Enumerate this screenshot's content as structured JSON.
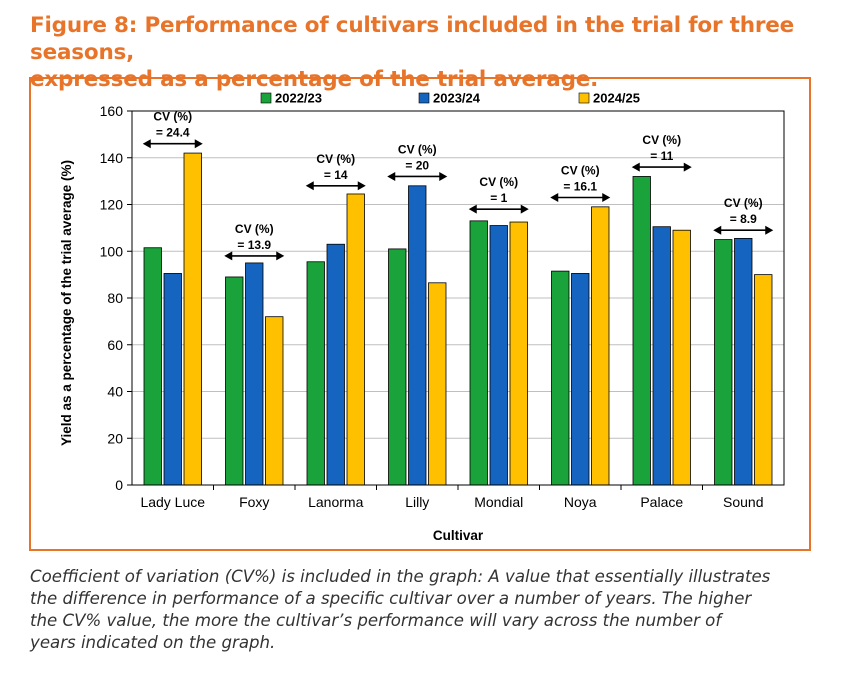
{
  "figure": {
    "title_line1": "Figure 8: Performance of cultivars included in the trial for three seasons,",
    "title_line2": "expressed as a percentage of the trial average.",
    "caption_lines": [
      "Coefficient of variation (CV%) is included in the graph: A value that essentially illustrates",
      "the difference in performance of a specific cultivar over a number of years. The higher",
      "the CV% value, the more the cultivar’s performance will vary across the number of",
      "years indicated on the graph."
    ]
  },
  "colors": {
    "title": "#e8742a",
    "series": [
      "#1aa33a",
      "#1565c0",
      "#ffc000"
    ]
  },
  "chart_data": {
    "type": "bar",
    "xlabel": "Cultivar",
    "ylabel": "Yield as a percentage of the trial average (%)",
    "ylim": [
      0,
      160
    ],
    "yticks": [
      0,
      20,
      40,
      60,
      80,
      100,
      120,
      140,
      160
    ],
    "grid": true,
    "legend_position": "top",
    "categories": [
      "Lady Luce",
      "Foxy",
      "Lanorma",
      "Lilly",
      "Mondial",
      "Noya",
      "Palace",
      "Sound"
    ],
    "series": [
      {
        "name": "2022/23",
        "values": [
          101.5,
          89,
          95.5,
          101,
          113,
          91.5,
          132,
          105
        ]
      },
      {
        "name": "2023/24",
        "values": [
          90.5,
          95,
          103,
          128,
          111,
          90.5,
          110.5,
          105.5
        ]
      },
      {
        "name": "2024/25",
        "values": [
          142,
          72,
          124.5,
          86.5,
          112.5,
          119,
          109,
          90
        ]
      }
    ],
    "annotations": [
      {
        "category": "Lady Luce",
        "line1": "CV (%)",
        "line2": "= 24.4",
        "y": 146
      },
      {
        "category": "Foxy",
        "line1": "CV (%)",
        "line2": "= 13.9",
        "y": 98
      },
      {
        "category": "Lanorma",
        "line1": "CV (%)",
        "line2": "= 14",
        "y": 128
      },
      {
        "category": "Lilly",
        "line1": "CV (%)",
        "line2": "= 20",
        "y": 132
      },
      {
        "category": "Mondial",
        "line1": "CV (%)",
        "line2": "= 1",
        "y": 118
      },
      {
        "category": "Noya",
        "line1": "CV (%)",
        "line2": "= 16.1",
        "y": 123
      },
      {
        "category": "Palace",
        "line1": "CV (%)",
        "line2": "= 11",
        "y": 136
      },
      {
        "category": "Sound",
        "line1": "CV (%)",
        "line2": "= 8.9",
        "y": 109
      }
    ]
  }
}
